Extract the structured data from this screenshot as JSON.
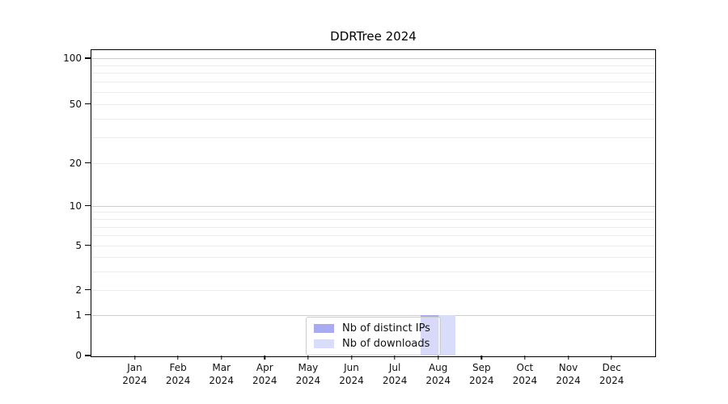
{
  "chart_data": {
    "type": "bar",
    "title": "DDRTree 2024",
    "categories": [
      "Jan",
      "Feb",
      "Mar",
      "Apr",
      "May",
      "Jun",
      "Jul",
      "Aug",
      "Sep",
      "Oct",
      "Nov",
      "Dec"
    ],
    "category_year": "2024",
    "series": [
      {
        "name": "Nb of distinct IPs",
        "color": "#a9abf2",
        "values": [
          0,
          0,
          0,
          0,
          0,
          0,
          0,
          1,
          0,
          0,
          0,
          0
        ]
      },
      {
        "name": "Nb of downloads",
        "color": "#d9ddfa",
        "values": [
          0,
          0,
          0,
          0,
          0,
          0,
          0,
          1,
          0,
          0,
          0,
          0
        ]
      }
    ],
    "y_ticks": [
      0,
      1,
      2,
      5,
      10,
      20,
      50,
      100
    ],
    "y_major_gridlines": [
      1,
      10,
      100
    ],
    "y_minor_gridlines": [
      2,
      3,
      4,
      5,
      6,
      7,
      8,
      9,
      20,
      30,
      40,
      50,
      60,
      70,
      80,
      90
    ],
    "ylim": [
      0,
      115
    ],
    "y_scale": "log-like (linear 0-1, logarithmic above)",
    "xlabel": "",
    "ylabel": "",
    "grid": "horizontal",
    "legend_position": "lower center inside plot"
  }
}
